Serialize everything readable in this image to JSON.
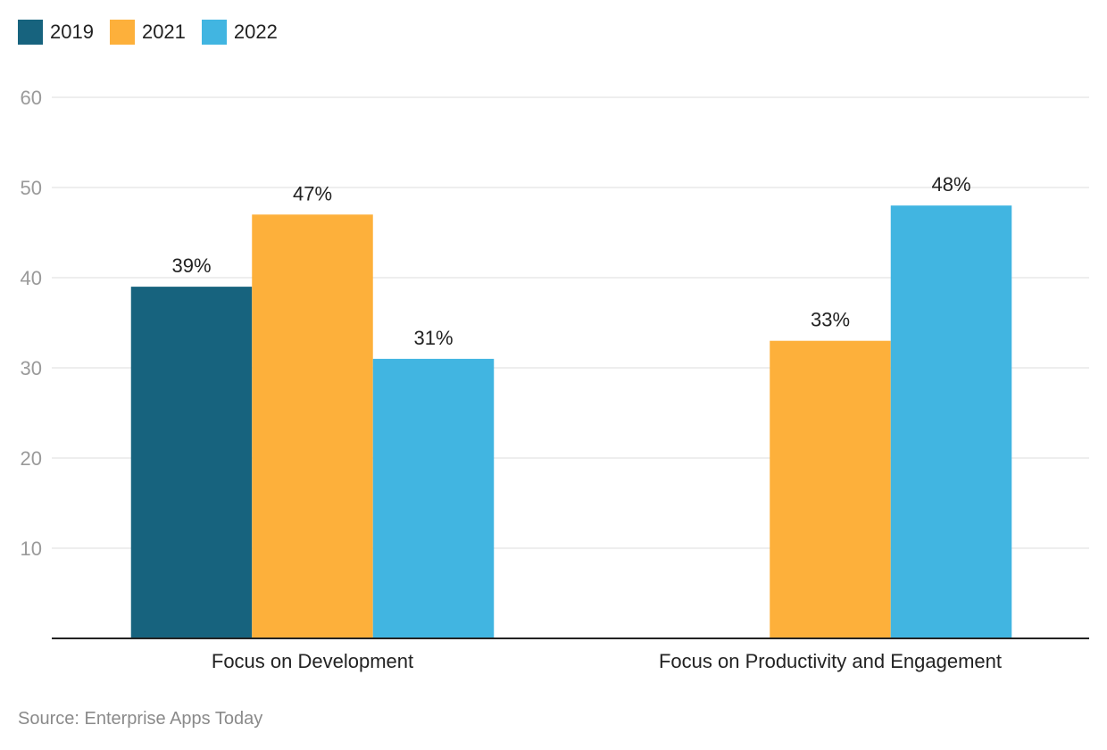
{
  "chart_data": {
    "type": "bar",
    "categories": [
      "Focus on Development",
      "Focus on Productivity and Engagement"
    ],
    "series": [
      {
        "name": "2019",
        "color": "#17637e",
        "values": [
          39,
          null
        ]
      },
      {
        "name": "2021",
        "color": "#fdb03b",
        "values": [
          47,
          33
        ]
      },
      {
        "name": "2022",
        "color": "#41b5e1",
        "values": [
          31,
          48
        ]
      }
    ],
    "data_labels": [
      [
        "39%",
        null
      ],
      [
        "47%",
        "33%"
      ],
      [
        "31%",
        "48%"
      ]
    ],
    "y_ticks": [
      "10",
      "20",
      "30",
      "40",
      "50",
      "60"
    ],
    "y_tick_values": [
      10,
      20,
      30,
      40,
      50,
      60
    ],
    "ylim": [
      0,
      60
    ],
    "grid": true,
    "legend_position": "top-left",
    "source": "Source: Enterprise Apps Today"
  }
}
